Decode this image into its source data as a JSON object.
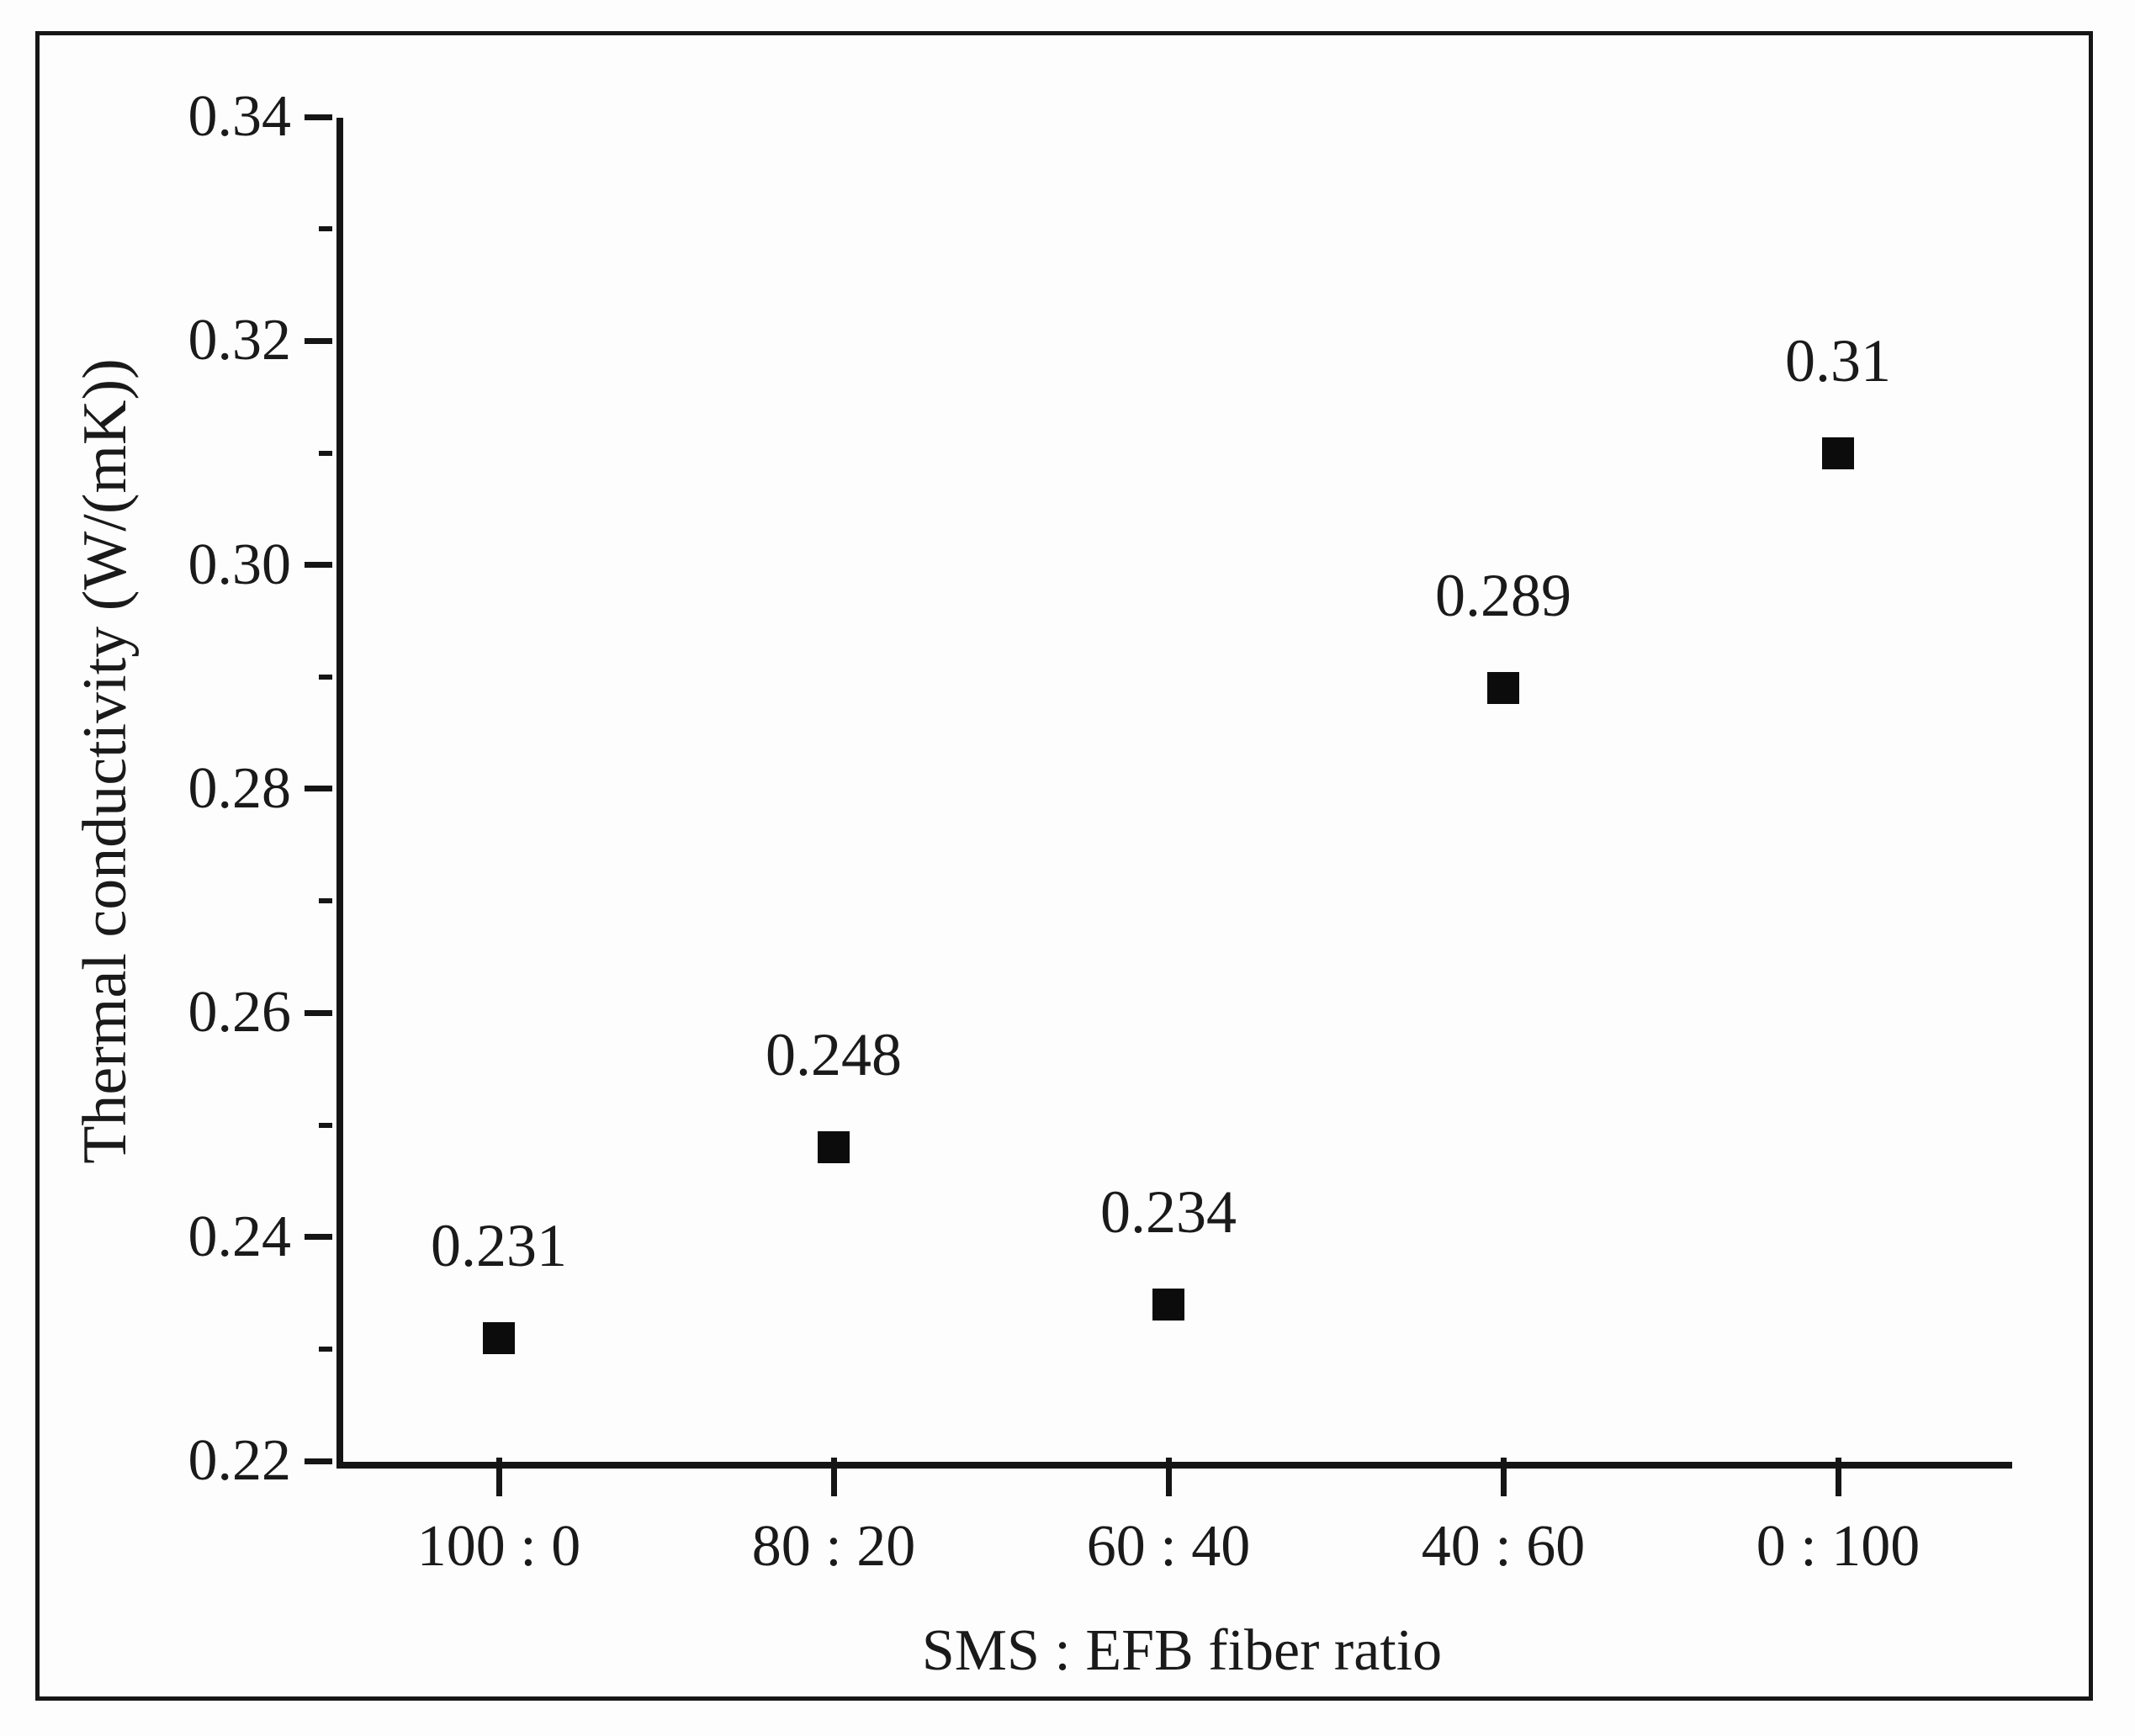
{
  "figure": {
    "background_color": "#fdfdfd",
    "frame_color": "#161616",
    "axis_color": "#151515",
    "text_color": "#1a1a1a"
  },
  "chart_data": {
    "type": "scatter",
    "title": "",
    "xlabel": "SMS : EFB fiber ratio",
    "ylabel": "Thermal conductivity (W/(mK))",
    "categories": [
      "100 : 0",
      "80 : 20",
      "60 : 40",
      "40 : 60",
      "0 : 100"
    ],
    "values": [
      0.231,
      0.248,
      0.234,
      0.289,
      0.31
    ],
    "point_labels": [
      "0.231",
      "0.248",
      "0.234",
      "0.289",
      "0.31"
    ],
    "marker": "filled-square",
    "marker_color": "#0c0c0c",
    "ylim": [
      0.22,
      0.34
    ],
    "y_major_ticks": [
      0.34,
      0.32,
      0.3,
      0.28,
      0.26,
      0.24,
      0.22
    ],
    "y_major_tick_labels": [
      "0.34",
      "0.32",
      "0.30",
      "0.28",
      "0.26",
      "0.24",
      "0.22"
    ],
    "y_minor_ticks": [
      0.33,
      0.31,
      0.29,
      0.27,
      0.25,
      0.23
    ],
    "grid": false,
    "legend_position": "none"
  }
}
